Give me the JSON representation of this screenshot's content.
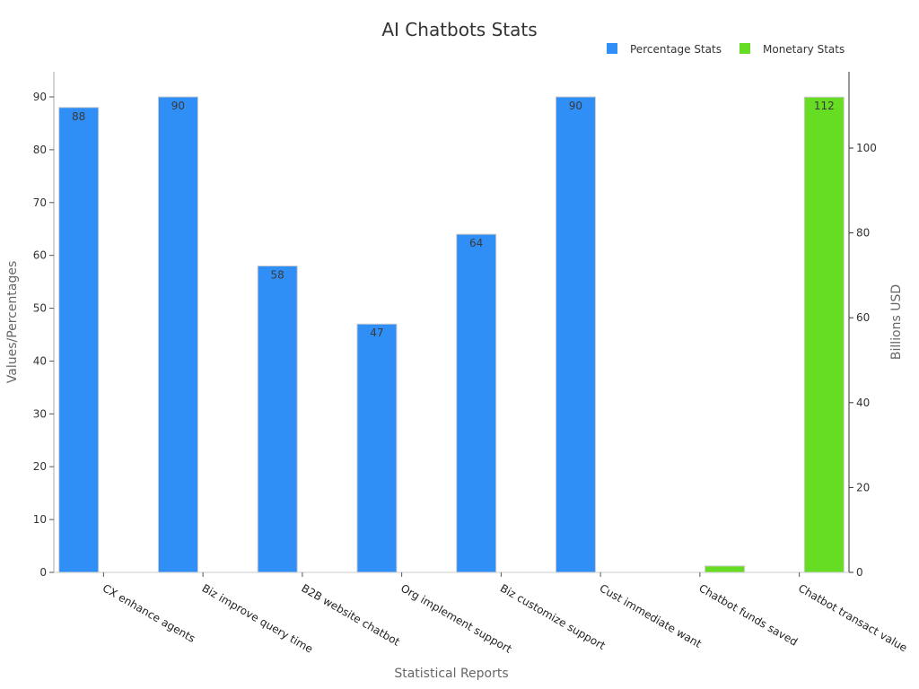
{
  "chart_data": {
    "type": "bar",
    "title": "AI Chatbots Stats",
    "xlabel": "Statistical Reports",
    "ylabel_left": "Values/Percentages",
    "ylabel_right": "Billions USD",
    "categories": [
      "CX enhance agents",
      "Biz improve query time",
      "B2B website chatbot",
      "Org implement support",
      "Biz customize support",
      "Cust immediate want",
      "Chatbot funds saved",
      "Chatbot transact value"
    ],
    "series": [
      {
        "name": "Percentage Stats",
        "color": "#2f8ff7",
        "axis": "left",
        "values": [
          88,
          90,
          58,
          47,
          64,
          90,
          null,
          null
        ]
      },
      {
        "name": "Monetary Stats",
        "color": "#66dd22",
        "axis": "right",
        "values": [
          null,
          null,
          null,
          null,
          null,
          null,
          1.5,
          112
        ]
      }
    ],
    "data_labels": [
      "88",
      "90",
      "58",
      "47",
      "64",
      "90",
      "",
      "112"
    ],
    "ylim_left": [
      0,
      95
    ],
    "yticks_left": [
      0,
      10,
      20,
      30,
      40,
      50,
      60,
      70,
      80,
      90
    ],
    "ylim_right": [
      0,
      118
    ],
    "yticks_right": [
      0,
      20,
      40,
      60,
      80,
      100
    ],
    "grid": false,
    "legend_position": "top-right"
  }
}
